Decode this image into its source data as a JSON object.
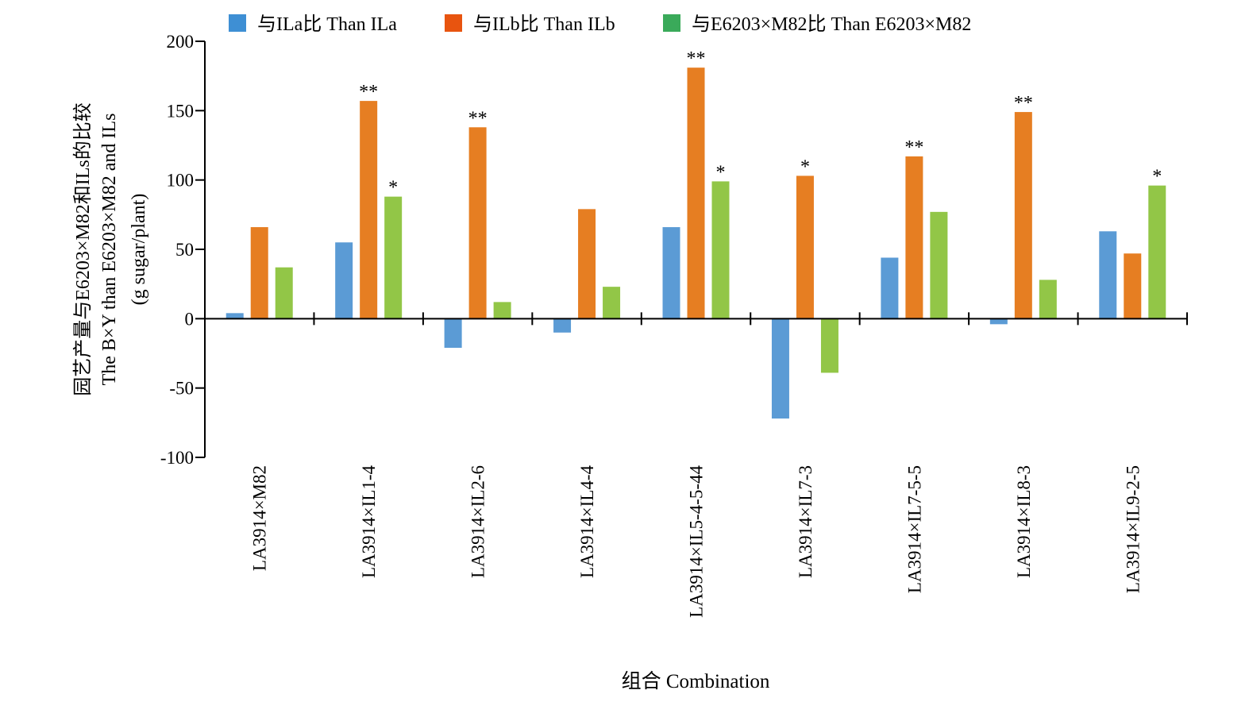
{
  "chart_data": {
    "type": "bar",
    "categories": [
      "LA3914×M82",
      "LA3914×IL1-4",
      "LA3914×IL2-6",
      "LA3914×IL4-4",
      "LA3914×IL5-4-5-44",
      "LA3914×IL7-3",
      "LA3914×IL7-5-5",
      "LA3914×IL8-3",
      "LA3914×IL9-2-5"
    ],
    "series": [
      {
        "name": "与ILa比 Than ILa",
        "color": "#5b9bd5",
        "values": [
          4,
          55,
          -21,
          -10,
          66,
          -72,
          44,
          -4,
          63
        ],
        "significance": [
          "",
          "",
          "",
          "",
          "",
          "",
          "",
          "",
          ""
        ]
      },
      {
        "name": "与ILb比 Than ILb",
        "color": "#e67e22",
        "values": [
          66,
          157,
          138,
          79,
          181,
          103,
          117,
          149,
          47
        ],
        "significance": [
          "",
          "**",
          "**",
          "",
          "**",
          "*",
          "**",
          "**",
          ""
        ]
      },
      {
        "name": "与E6203×M82比 Than E6203×M82",
        "color": "#92c647",
        "values": [
          37,
          88,
          12,
          23,
          99,
          -39,
          77,
          28,
          96
        ],
        "significance": [
          "",
          "*",
          "",
          "",
          "*",
          "",
          "",
          "",
          "*"
        ]
      }
    ],
    "legend_colors": [
      "#3e8fd4",
      "#e8540f",
      "#3aaa5a"
    ],
    "ylabel_lines": [
      "园艺产量与E6203×M82和ILs的比较",
      "The B×Y than E6203×M82 and ILs",
      "(g sugar/plant)"
    ],
    "xlabel": "组合 Combination",
    "ylim": [
      -100,
      200
    ],
    "yticks": [
      200,
      150,
      100,
      50,
      0,
      -50,
      -100
    ],
    "grid": false,
    "legend_position": "top"
  }
}
